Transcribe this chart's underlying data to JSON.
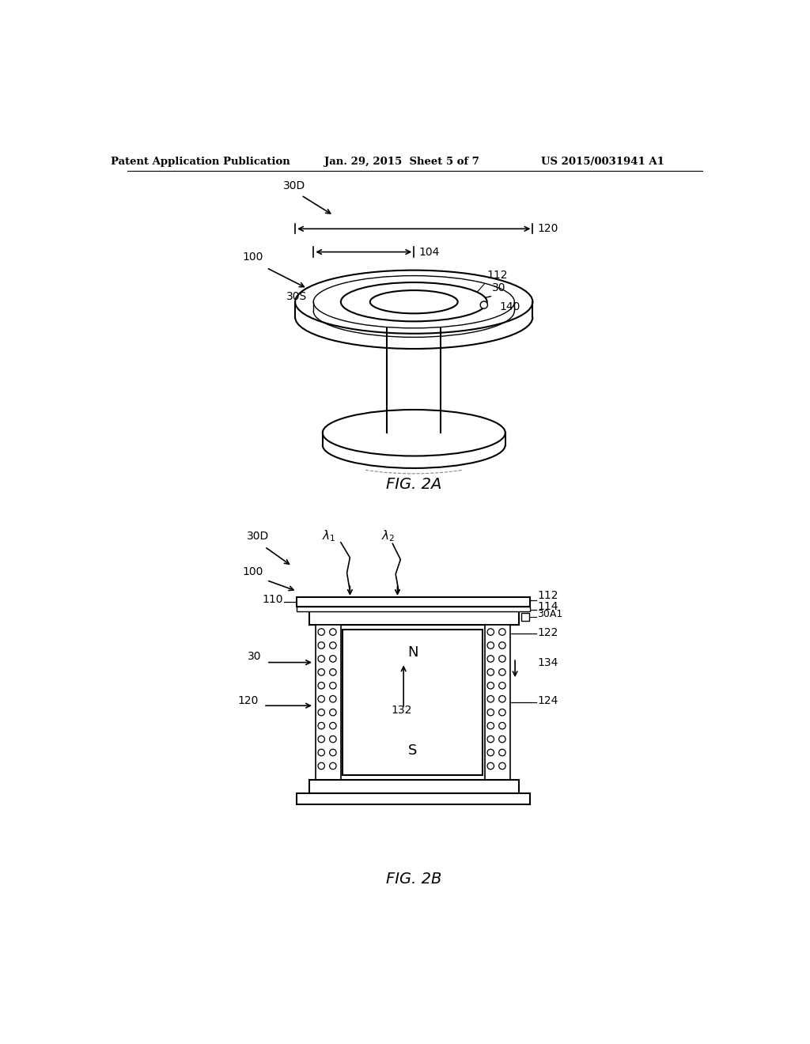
{
  "bg_color": "#ffffff",
  "header_left": "Patent Application Publication",
  "header_center": "Jan. 29, 2015  Sheet 5 of 7",
  "header_right": "US 2015/0031941 A1",
  "fig2a_label": "FIG. 2A",
  "fig2b_label": "FIG. 2B",
  "line_color": "#000000",
  "text_color": "#000000"
}
